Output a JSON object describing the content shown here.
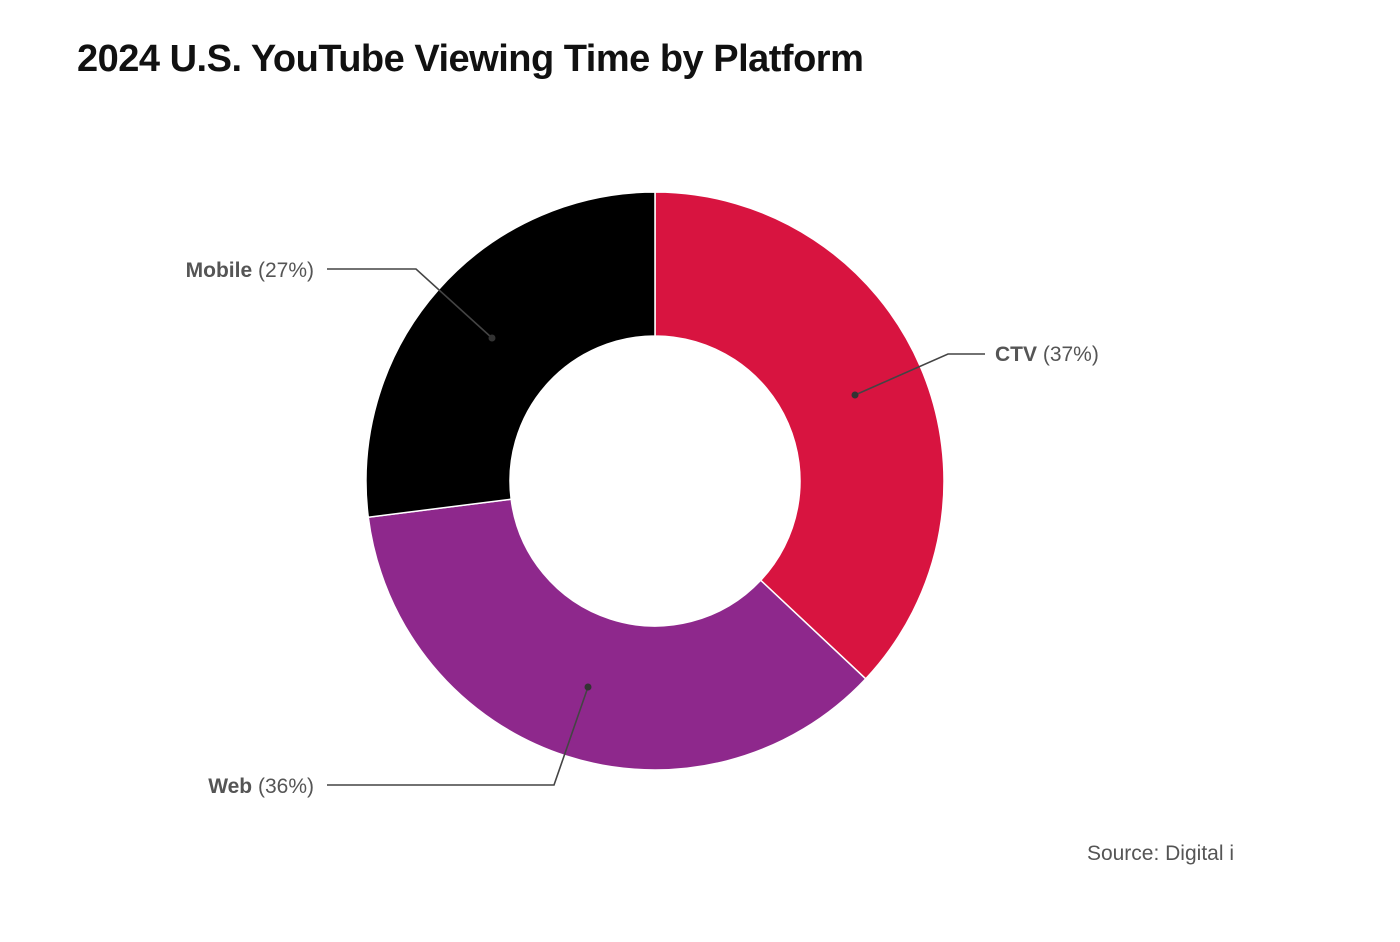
{
  "chart_data": {
    "type": "pie",
    "title": "2024 U.S. YouTube Viewing Time by Platform",
    "slices": [
      {
        "label": "CTV",
        "value": 37,
        "pct_label": "(37%)",
        "color": "#d81440"
      },
      {
        "label": "Web",
        "value": 36,
        "pct_label": "(36%)",
        "color": "#8e288c"
      },
      {
        "label": "Mobile",
        "value": 27,
        "pct_label": "(27%)",
        "color": "#000000"
      }
    ],
    "donut": true,
    "source": "Source: Digital i"
  }
}
